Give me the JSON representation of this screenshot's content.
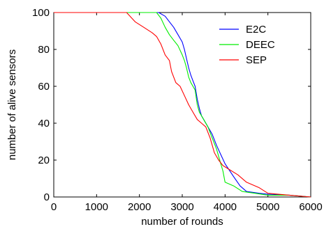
{
  "chart_data": {
    "type": "line",
    "title": "",
    "xlabel": "number of rounds",
    "ylabel": "number of alive sensors",
    "xlim": [
      0,
      6000
    ],
    "ylim": [
      0,
      100
    ],
    "xticks": [
      0,
      1000,
      2000,
      3000,
      4000,
      5000,
      6000
    ],
    "yticks": [
      0,
      20,
      40,
      60,
      80,
      100
    ],
    "grid": false,
    "legend_position": "top-right",
    "series": [
      {
        "name": "E2C",
        "color": "#0000ff",
        "points": [
          [
            0,
            100
          ],
          [
            2450,
            100
          ],
          [
            2600,
            98
          ],
          [
            2700,
            95
          ],
          [
            2800,
            92
          ],
          [
            2900,
            88
          ],
          [
            3000,
            84
          ],
          [
            3050,
            80
          ],
          [
            3100,
            75
          ],
          [
            3150,
            70
          ],
          [
            3200,
            66
          ],
          [
            3250,
            63
          ],
          [
            3300,
            60
          ],
          [
            3350,
            53
          ],
          [
            3400,
            48
          ],
          [
            3450,
            44
          ],
          [
            3500,
            42
          ],
          [
            3600,
            38
          ],
          [
            3700,
            34
          ],
          [
            3800,
            28
          ],
          [
            3900,
            23
          ],
          [
            4000,
            18
          ],
          [
            4200,
            11
          ],
          [
            4350,
            6
          ],
          [
            4500,
            3
          ],
          [
            4800,
            2
          ],
          [
            5000,
            1.5
          ],
          [
            5500,
            1
          ],
          [
            6000,
            0
          ]
        ]
      },
      {
        "name": "DEEC",
        "color": "#00ee00",
        "points": [
          [
            0,
            100
          ],
          [
            2400,
            100
          ],
          [
            2500,
            97
          ],
          [
            2600,
            92
          ],
          [
            2700,
            88
          ],
          [
            2800,
            85
          ],
          [
            2900,
            82
          ],
          [
            3000,
            77
          ],
          [
            3050,
            74
          ],
          [
            3100,
            70
          ],
          [
            3150,
            65
          ],
          [
            3200,
            62
          ],
          [
            3300,
            58
          ],
          [
            3350,
            50
          ],
          [
            3400,
            46
          ],
          [
            3500,
            42
          ],
          [
            3600,
            38
          ],
          [
            3700,
            32
          ],
          [
            3800,
            26
          ],
          [
            3900,
            18
          ],
          [
            3950,
            14
          ],
          [
            4000,
            8
          ],
          [
            4200,
            6
          ],
          [
            4400,
            3
          ],
          [
            4700,
            2
          ],
          [
            5000,
            1
          ],
          [
            5500,
            1
          ],
          [
            6000,
            0
          ]
        ]
      },
      {
        "name": "SEP",
        "color": "#ff0000",
        "points": [
          [
            0,
            100
          ],
          [
            1700,
            100
          ],
          [
            1900,
            95
          ],
          [
            2100,
            92
          ],
          [
            2300,
            89
          ],
          [
            2400,
            87
          ],
          [
            2500,
            83
          ],
          [
            2600,
            77
          ],
          [
            2700,
            74
          ],
          [
            2750,
            68
          ],
          [
            2850,
            62
          ],
          [
            2950,
            60
          ],
          [
            3050,
            55
          ],
          [
            3150,
            50
          ],
          [
            3250,
            46
          ],
          [
            3350,
            42
          ],
          [
            3450,
            40
          ],
          [
            3550,
            38
          ],
          [
            3650,
            32
          ],
          [
            3750,
            24
          ],
          [
            3850,
            20
          ],
          [
            3950,
            17
          ],
          [
            4300,
            12
          ],
          [
            4500,
            8
          ],
          [
            4800,
            5
          ],
          [
            5000,
            2
          ],
          [
            5500,
            1
          ],
          [
            6000,
            0
          ]
        ]
      }
    ]
  }
}
